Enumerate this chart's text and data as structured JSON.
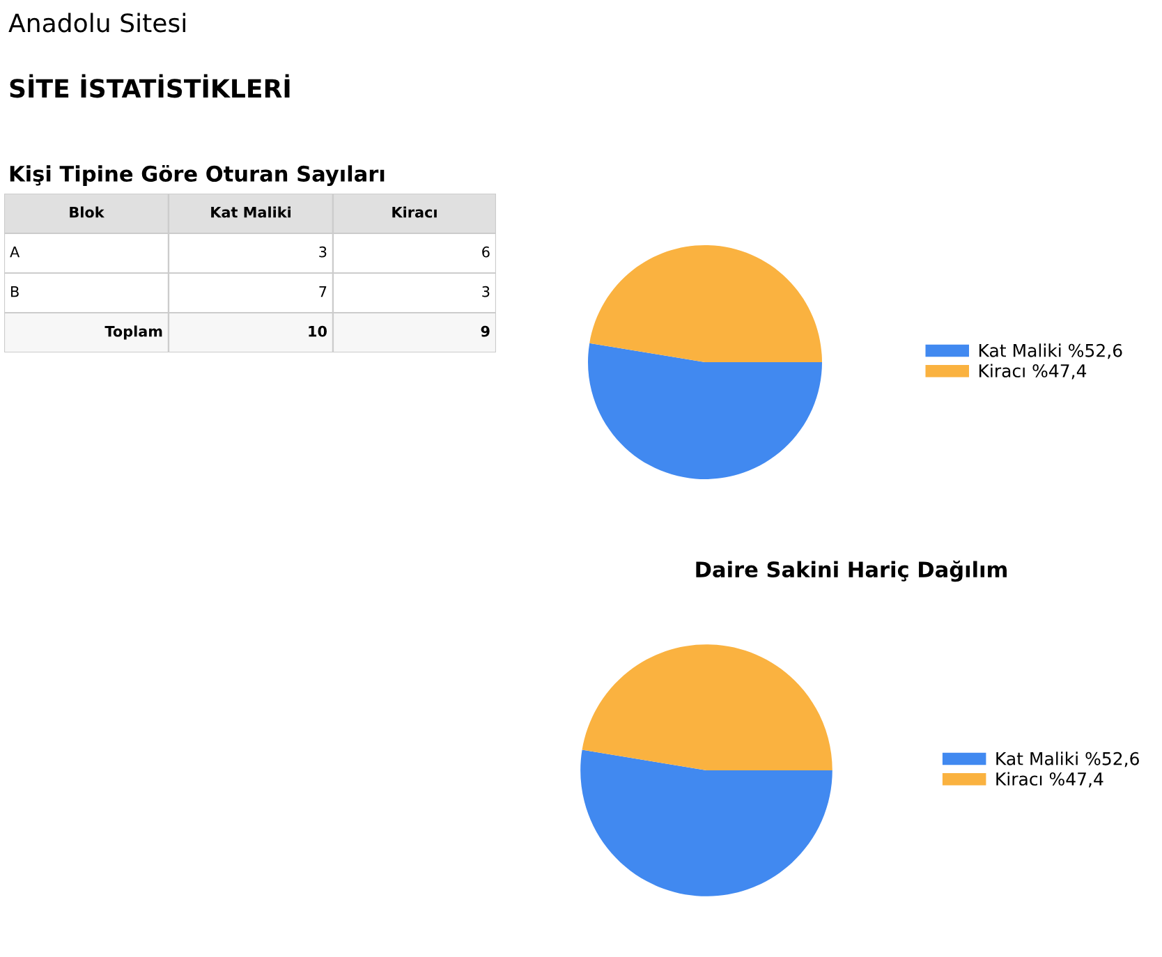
{
  "chart_data": [
    {
      "type": "other",
      "title": "Anadolu Sitesi",
      "subtitle": "SİTE İSTATİSTİKLERİ",
      "annotations": [
        "Kişi Tipine Göre Oturan Sayıları",
        "Blok",
        "Kat Maliki",
        "Kiracı",
        "Toplam"
      ],
      "categories": [
        "A",
        "B"
      ],
      "series": [
        {
          "values": [
            3,
            7
          ]
        },
        {
          "values": [
            6,
            3
          ]
        }
      ],
      "data_labels": true,
      "totals": [
        "10",
        "9"
      ]
    },
    {
      "type": "pie",
      "categories": [
        "Kat Maliki %52,6",
        "Kiracı %47,4"
      ],
      "values": [
        52.6,
        47.4
      ],
      "colors": [
        "#4189f0",
        "#fab240"
      ],
      "legend": "right"
    },
    {
      "type": "pie",
      "title": "Daire Sakini Hariç Dağılım",
      "categories": [
        "Kat Maliki %52,6",
        "Kiracı %47,4"
      ],
      "values": [
        52.6,
        47.4
      ],
      "colors": [
        "#4189f0",
        "#fab240"
      ],
      "legend": "right"
    }
  ]
}
